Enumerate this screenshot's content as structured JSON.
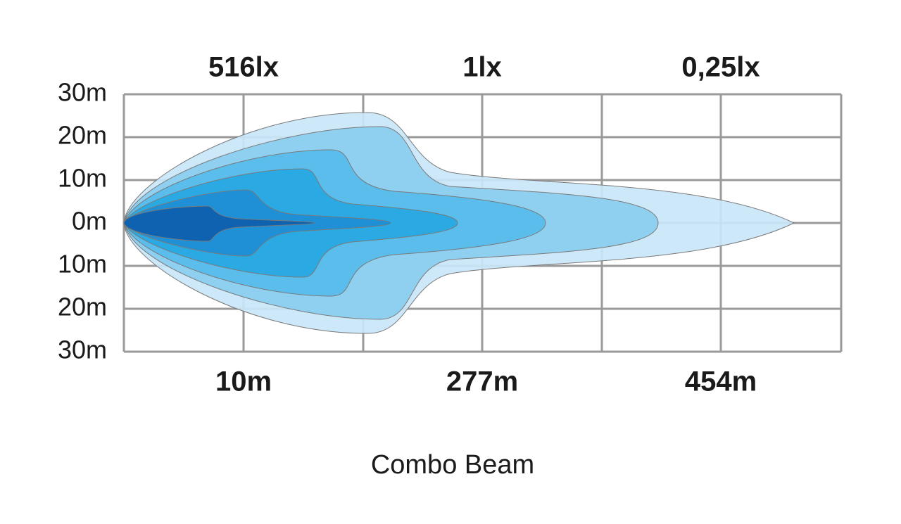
{
  "y_axis_labels": [
    "30m",
    "20m",
    "10m",
    "0m",
    "10m",
    "20m",
    "30m"
  ],
  "illuminance_labels": [
    "516lx",
    "1lx",
    "0,25lx"
  ],
  "distance_labels": [
    "10m",
    "277m",
    "454m"
  ],
  "caption": "Combo Beam"
}
